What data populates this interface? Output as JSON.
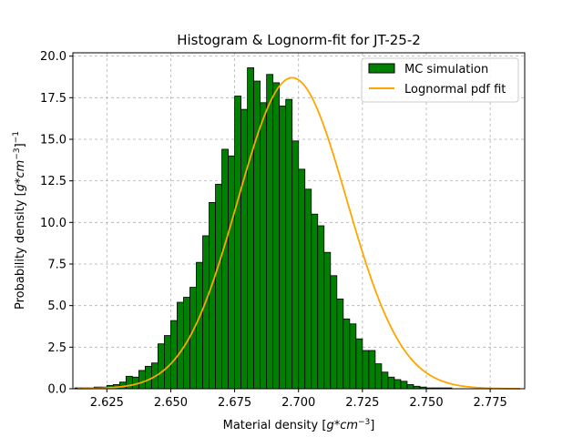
{
  "chart_data": {
    "type": "bar",
    "title": "Histogram & Lognorm-fit for JT-25-2",
    "xlabel": "Material density",
    "xlabel_unit": "g*cm",
    "xlabel_exp": "−3",
    "ylabel": "Probability density",
    "ylabel_unit": "g*cm",
    "ylabel_exp_inner": "−3",
    "ylabel_exp_outer": "−1",
    "xlim": [
      2.6117,
      2.7885
    ],
    "ylim": [
      0,
      20.2
    ],
    "x_ticks": [
      2.625,
      2.65,
      2.675,
      2.7,
      2.725,
      2.75,
      2.775
    ],
    "x_tick_labels": [
      "2.625",
      "2.650",
      "2.675",
      "2.700",
      "2.725",
      "2.750",
      "2.775"
    ],
    "y_ticks": [
      0,
      2.5,
      5,
      7.5,
      10,
      12.5,
      15,
      17.5,
      20
    ],
    "y_tick_labels": [
      "0.0",
      "2.5",
      "5.0",
      "7.5",
      "10.0",
      "12.5",
      "15.0",
      "17.5",
      "20.0"
    ],
    "grid": true,
    "legend_position": "top-right",
    "histogram": {
      "name": "MC simulation",
      "color": "#008000",
      "edge_color": "#000000",
      "bin_start": 2.6125,
      "bin_width": 0.0025,
      "values": [
        0.05,
        0.05,
        0.05,
        0.1,
        0.1,
        0.2,
        0.25,
        0.4,
        0.75,
        0.7,
        1.1,
        1.35,
        1.55,
        2.7,
        3.2,
        4.1,
        5.2,
        5.5,
        6.1,
        7.6,
        9.2,
        11.2,
        12.3,
        14.4,
        14.0,
        17.6,
        16.8,
        19.3,
        18.5,
        17.2,
        18.9,
        18.4,
        17.0,
        17.4,
        14.9,
        13.2,
        12.0,
        10.5,
        9.8,
        8.2,
        6.8,
        5.4,
        4.2,
        3.9,
        3.0,
        2.3,
        2.3,
        1.5,
        1.0,
        0.7,
        0.55,
        0.45,
        0.25,
        0.15,
        0.1,
        0.05,
        0.05,
        0.05,
        0.05
      ]
    },
    "fit": {
      "name": "Lognormal pdf fit",
      "color": "#ffa500",
      "type": "lognormal",
      "peak_x": 2.6975,
      "peak_y": 18.7,
      "x_range": [
        2.6135,
        2.7867
      ]
    }
  }
}
